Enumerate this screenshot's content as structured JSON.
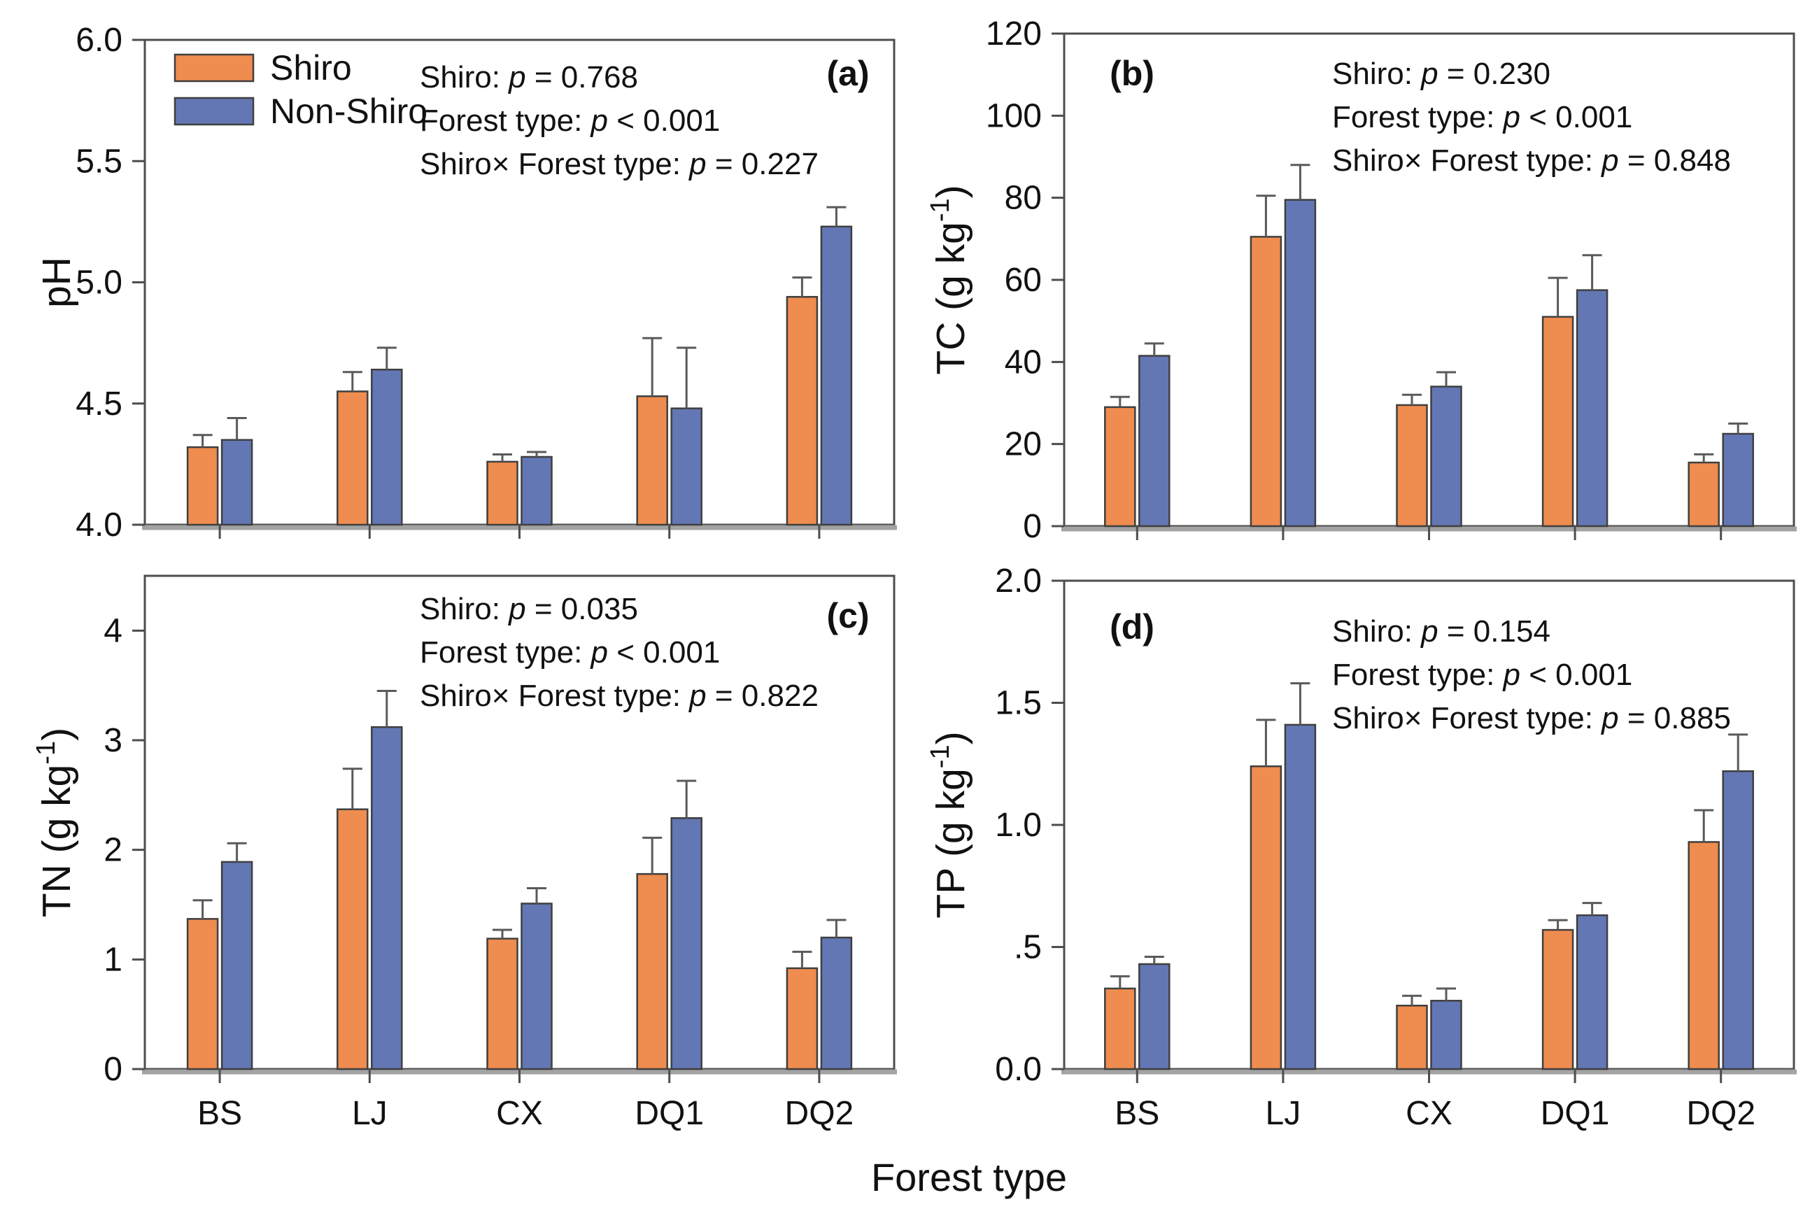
{
  "figure": {
    "x_axis_title": "Forest type",
    "categories": [
      "BS",
      "LJ",
      "CX",
      "DQ1",
      "DQ2"
    ],
    "legend": [
      {
        "label": "Shiro",
        "color": "#EF8C4F"
      },
      {
        "label": "Non-Shiro",
        "color": "#6377B4"
      }
    ],
    "colors": {
      "bar_border": "#3f3f3f",
      "axis": "#4d4d4d",
      "baseline": "#a3a3a3",
      "error_bar": "#5a5a5a",
      "text": "#111111"
    }
  },
  "chart_data": [
    {
      "id": "a",
      "type": "bar",
      "panel_label": "(a)",
      "panel_label_side": "right",
      "ylabel": {
        "pre": "pH",
        "sup": "",
        "post": ""
      },
      "ylim": [
        4.0,
        6.0
      ],
      "yticks": [
        {
          "v": 4.0,
          "label": "4.0"
        },
        {
          "v": 4.5,
          "label": "4.5"
        },
        {
          "v": 5.0,
          "label": "5.0"
        },
        {
          "v": 5.5,
          "label": "5.5"
        },
        {
          "v": 6.0,
          "label": "6.0"
        }
      ],
      "series": [
        {
          "name": "Shiro",
          "values": [
            4.32,
            4.55,
            4.26,
            4.53,
            4.94
          ],
          "errors": [
            0.05,
            0.08,
            0.03,
            0.24,
            0.08
          ]
        },
        {
          "name": "Non-Shiro",
          "values": [
            4.35,
            4.64,
            4.28,
            4.48,
            5.23
          ],
          "errors": [
            0.09,
            0.09,
            0.02,
            0.25,
            0.08
          ]
        }
      ],
      "stats": [
        {
          "label": "Shiro",
          "op": "=",
          "value": "0.768"
        },
        {
          "label": "Forest type",
          "op": "<",
          "value": "0.001"
        },
        {
          "label": "Shiro×  Forest type",
          "op": "=",
          "value": "0.227"
        }
      ],
      "has_legend": true,
      "show_x_labels": false
    },
    {
      "id": "b",
      "type": "bar",
      "panel_label": "(b)",
      "panel_label_side": "left",
      "ylabel": {
        "pre": "TC (g kg",
        "sup": "-1",
        "post": ")"
      },
      "ylim": [
        0,
        120
      ],
      "yticks": [
        {
          "v": 0,
          "label": "0"
        },
        {
          "v": 20,
          "label": "20"
        },
        {
          "v": 40,
          "label": "40"
        },
        {
          "v": 60,
          "label": "60"
        },
        {
          "v": 80,
          "label": "80"
        },
        {
          "v": 100,
          "label": "100"
        },
        {
          "v": 120,
          "label": "120"
        }
      ],
      "series": [
        {
          "name": "Shiro",
          "values": [
            29,
            70.5,
            29.5,
            51,
            15.5
          ],
          "errors": [
            2.5,
            10,
            2.5,
            9.5,
            2
          ]
        },
        {
          "name": "Non-Shiro",
          "values": [
            41.5,
            79.5,
            34,
            57.5,
            22.5
          ],
          "errors": [
            3,
            8.5,
            3.5,
            8.5,
            2.5
          ]
        }
      ],
      "stats": [
        {
          "label": "Shiro",
          "op": "=",
          "value": "0.230"
        },
        {
          "label": "Forest type",
          "op": "<",
          "value": "0.001"
        },
        {
          "label": "Shiro×  Forest type",
          "op": "=",
          "value": "0.848"
        }
      ],
      "has_legend": false,
      "show_x_labels": false
    },
    {
      "id": "c",
      "type": "bar",
      "panel_label": "(c)",
      "panel_label_side": "right",
      "ylabel": {
        "pre": "TN (g kg",
        "sup": "-1",
        "post": ")"
      },
      "ylim": [
        0,
        4.5
      ],
      "yticks": [
        {
          "v": 0,
          "label": "0"
        },
        {
          "v": 1,
          "label": "1"
        },
        {
          "v": 2,
          "label": "2"
        },
        {
          "v": 3,
          "label": "3"
        },
        {
          "v": 4,
          "label": "4"
        }
      ],
      "series": [
        {
          "name": "Shiro",
          "values": [
            1.37,
            2.37,
            1.19,
            1.78,
            0.92
          ],
          "errors": [
            0.17,
            0.37,
            0.08,
            0.33,
            0.15
          ]
        },
        {
          "name": "Non-Shiro",
          "values": [
            1.89,
            3.12,
            1.51,
            2.29,
            1.2
          ],
          "errors": [
            0.17,
            0.33,
            0.14,
            0.34,
            0.16
          ]
        }
      ],
      "stats": [
        {
          "label": "Shiro",
          "op": "=",
          "value": "0.035"
        },
        {
          "label": "Forest type",
          "op": "<",
          "value": "0.001"
        },
        {
          "label": "Shiro×  Forest type",
          "op": "=",
          "value": "0.822"
        }
      ],
      "has_legend": false,
      "show_x_labels": true
    },
    {
      "id": "d",
      "type": "bar",
      "panel_label": "(d)",
      "panel_label_side": "left",
      "ylabel": {
        "pre": "TP (g kg",
        "sup": "-1",
        "post": ")"
      },
      "ylim": [
        0,
        2.0
      ],
      "yticks": [
        {
          "v": 0,
          "label": "0.0"
        },
        {
          "v": 0.5,
          "label": ".5"
        },
        {
          "v": 1.0,
          "label": "1.0"
        },
        {
          "v": 1.5,
          "label": "1.5"
        },
        {
          "v": 2.0,
          "label": "2.0"
        }
      ],
      "series": [
        {
          "name": "Shiro",
          "values": [
            0.33,
            1.24,
            0.26,
            0.57,
            0.93
          ],
          "errors": [
            0.05,
            0.19,
            0.04,
            0.04,
            0.13
          ]
        },
        {
          "name": "Non-Shiro",
          "values": [
            0.43,
            1.41,
            0.28,
            0.63,
            1.22
          ],
          "errors": [
            0.03,
            0.17,
            0.05,
            0.05,
            0.15
          ]
        }
      ],
      "stats": [
        {
          "label": "Shiro",
          "op": "=",
          "value": "0.154"
        },
        {
          "label": "Forest type",
          "op": "<",
          "value": "0.001"
        },
        {
          "label": "Shiro×  Forest type",
          "op": "=",
          "value": "0.885"
        }
      ],
      "has_legend": false,
      "show_x_labels": true
    }
  ]
}
